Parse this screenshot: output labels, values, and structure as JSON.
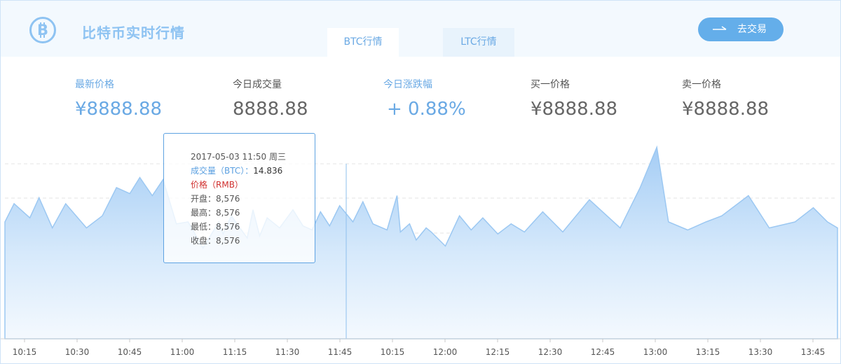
{
  "header": {
    "title": "比特币实时行情",
    "tabs": [
      {
        "label": "BTC行情",
        "active": true
      },
      {
        "label": "LTC行情",
        "active": false
      }
    ],
    "trade_button": "去交易"
  },
  "stats": [
    {
      "label": "最新价格",
      "value": "¥8888.88"
    },
    {
      "label": "今日成交量",
      "value": "8888.88"
    },
    {
      "label": "今日涨跌幅",
      "value": "+ 0.88%"
    },
    {
      "label": "买一价格",
      "value": "¥8888.88"
    },
    {
      "label": "卖一价格",
      "value": "¥8888.88"
    }
  ],
  "tooltip": {
    "datetime": "2017-05-03 11:50 周三",
    "volume_label": "成交量（BTC）：",
    "volume_value": "14.836",
    "price_label": "价格（RMB）",
    "open": "开盘：8,576",
    "high": "最高：8,576",
    "low": "最低：8,576",
    "close": "收盘：8,576"
  },
  "colors": {
    "accent": "#64aeea",
    "area_top": "#a5cdf5",
    "line": "#9cc8f2",
    "red": "#d0302f"
  },
  "chart_data": {
    "type": "area",
    "x_labels": [
      "10:15",
      "10:30",
      "10:45",
      "11:00",
      "11:15",
      "11:30",
      "11:45",
      "10:15",
      "12:00",
      "12:15",
      "12:30",
      "12:45",
      "13:00",
      "13:15",
      "13:30",
      "13:45"
    ],
    "grid": "dashed horizontal",
    "legend": "none",
    "crosshair_label": "11:45",
    "series_shape": [
      [
        0,
        58
      ],
      [
        0.011,
        67
      ],
      [
        0.03,
        60
      ],
      [
        0.041,
        70
      ],
      [
        0.057,
        55
      ],
      [
        0.073,
        67
      ],
      [
        0.098,
        55
      ],
      [
        0.117,
        61
      ],
      [
        0.134,
        75
      ],
      [
        0.15,
        72
      ],
      [
        0.162,
        80
      ],
      [
        0.177,
        71
      ],
      [
        0.19,
        79
      ],
      [
        0.206,
        57
      ],
      [
        0.22,
        58
      ],
      [
        0.238,
        45
      ],
      [
        0.257,
        58
      ],
      [
        0.262,
        52
      ],
      [
        0.272,
        61
      ],
      [
        0.291,
        50
      ],
      [
        0.298,
        64
      ],
      [
        0.306,
        51
      ],
      [
        0.315,
        60
      ],
      [
        0.33,
        55
      ],
      [
        0.346,
        64
      ],
      [
        0.358,
        56
      ],
      [
        0.369,
        54
      ],
      [
        0.379,
        63
      ],
      [
        0.39,
        56
      ],
      [
        0.402,
        66
      ],
      [
        0.418,
        58
      ],
      [
        0.43,
        68
      ],
      [
        0.442,
        57
      ],
      [
        0.459,
        54
      ],
      [
        0.471,
        71
      ],
      [
        0.475,
        53
      ],
      [
        0.486,
        57
      ],
      [
        0.494,
        49
      ],
      [
        0.506,
        55
      ],
      [
        0.512,
        53
      ],
      [
        0.529,
        46
      ],
      [
        0.546,
        61
      ],
      [
        0.56,
        54
      ],
      [
        0.574,
        60
      ],
      [
        0.592,
        52
      ],
      [
        0.608,
        57
      ],
      [
        0.624,
        53
      ],
      [
        0.646,
        63
      ],
      [
        0.67,
        53
      ],
      [
        0.702,
        69
      ],
      [
        0.739,
        55
      ],
      [
        0.763,
        75
      ],
      [
        0.783,
        95
      ],
      [
        0.797,
        58
      ],
      [
        0.82,
        54
      ],
      [
        0.842,
        58
      ],
      [
        0.861,
        61
      ],
      [
        0.893,
        71
      ],
      [
        0.918,
        55
      ],
      [
        0.949,
        58
      ],
      [
        0.971,
        65
      ],
      [
        0.988,
        58
      ],
      [
        1.0,
        55
      ]
    ]
  }
}
